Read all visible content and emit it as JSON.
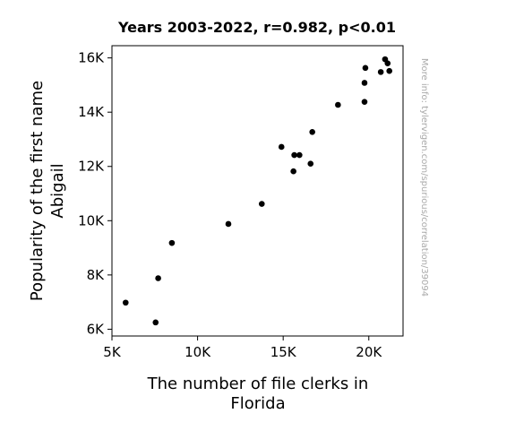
{
  "chart_data": {
    "type": "scatter",
    "title": "Years 2003-2022, r=0.982, p<0.01",
    "xlabel_lines": [
      "The number of file clerks in",
      "Florida"
    ],
    "ylabel_lines": [
      "Popularity of the first name",
      "Abigail"
    ],
    "watermark": "More info: tylervigen.com/spurious/correlation/39094",
    "xlim": [
      5000,
      22000
    ],
    "ylim": [
      5750,
      16450
    ],
    "xticks": [
      {
        "value": 5000,
        "label": "5K"
      },
      {
        "value": 10000,
        "label": "10K"
      },
      {
        "value": 15000,
        "label": "15K"
      },
      {
        "value": 20000,
        "label": "20K"
      }
    ],
    "yticks": [
      {
        "value": 6000,
        "label": "6K"
      },
      {
        "value": 8000,
        "label": "8K"
      },
      {
        "value": 10000,
        "label": "10K"
      },
      {
        "value": 12000,
        "label": "12K"
      },
      {
        "value": 14000,
        "label": "14K"
      },
      {
        "value": 16000,
        "label": "16K"
      }
    ],
    "point_color": "#000000",
    "points": [
      {
        "x": 5800,
        "y": 6980
      },
      {
        "x": 7550,
        "y": 6250
      },
      {
        "x": 7700,
        "y": 7880
      },
      {
        "x": 8500,
        "y": 9180
      },
      {
        "x": 11800,
        "y": 9880
      },
      {
        "x": 13750,
        "y": 10620
      },
      {
        "x": 14900,
        "y": 12720
      },
      {
        "x": 15600,
        "y": 11820
      },
      {
        "x": 15650,
        "y": 12420
      },
      {
        "x": 15950,
        "y": 12420
      },
      {
        "x": 16600,
        "y": 12100
      },
      {
        "x": 16700,
        "y": 13270
      },
      {
        "x": 18200,
        "y": 14270
      },
      {
        "x": 19750,
        "y": 15080
      },
      {
        "x": 19750,
        "y": 14380
      },
      {
        "x": 19800,
        "y": 15630
      },
      {
        "x": 20700,
        "y": 15480
      },
      {
        "x": 20950,
        "y": 15950
      },
      {
        "x": 21100,
        "y": 15800
      },
      {
        "x": 21200,
        "y": 15520
      }
    ]
  }
}
